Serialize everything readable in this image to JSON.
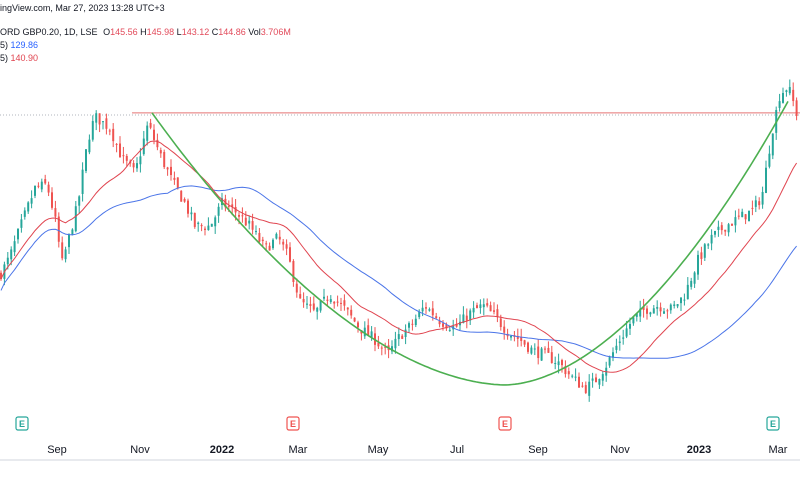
{
  "header": {
    "source_line": "ingView.com, Mar 27, 2023 13:28 UTC+3",
    "symbol_prefix": "ORD GBP0.20, 1D, LSE",
    "o_label": "O",
    "o_value": "145.56",
    "h_label": "H",
    "h_value": "145.98",
    "l_label": "L",
    "l_value": "143.12",
    "c_label": "C",
    "c_value": "144.86",
    "vol_label": "Vol",
    "vol_value": "3.706M",
    "ma_slow_prefix": "5)",
    "ma_slow_value": "129.86",
    "ma_fast_prefix": "5)",
    "ma_fast_value": "140.90"
  },
  "colors": {
    "up": "#26a69a",
    "down": "#ef5350",
    "ma_fast": "#e0444f",
    "ma_slow": "#4a74e8",
    "cup": "#4caf50",
    "resistance": "#e57373",
    "event_green": "#26a69a",
    "event_red": "#ef5350"
  },
  "chart_data": {
    "type": "candlestick",
    "x_ticks": [
      {
        "label": "Sep",
        "bold": false
      },
      {
        "label": "Nov",
        "bold": false
      },
      {
        "label": "2022",
        "bold": true
      },
      {
        "label": "Mar",
        "bold": false
      },
      {
        "label": "May",
        "bold": false
      },
      {
        "label": "Jul",
        "bold": false
      },
      {
        "label": "Sep",
        "bold": false
      },
      {
        "label": "Nov",
        "bold": false
      },
      {
        "label": "2023",
        "bold": true
      },
      {
        "label": "Mar",
        "bold": false
      }
    ],
    "event_markers": [
      {
        "label": "E",
        "color": "green"
      },
      {
        "label": "E",
        "color": "red"
      },
      {
        "label": "E",
        "color": "red"
      },
      {
        "label": "E",
        "color": "green"
      }
    ],
    "price_anchors": [
      [
        0,
        103
      ],
      [
        10,
        108
      ],
      [
        22,
        117
      ],
      [
        35,
        126
      ],
      [
        47,
        127
      ],
      [
        55,
        118
      ],
      [
        62,
        106
      ],
      [
        78,
        122
      ],
      [
        88,
        139
      ],
      [
        95,
        145
      ],
      [
        110,
        142
      ],
      [
        122,
        134
      ],
      [
        135,
        130
      ],
      [
        148,
        143
      ],
      [
        160,
        135
      ],
      [
        172,
        128
      ],
      [
        185,
        122
      ],
      [
        195,
        116
      ],
      [
        210,
        116
      ],
      [
        222,
        122
      ],
      [
        235,
        120
      ],
      [
        250,
        116
      ],
      [
        265,
        110
      ],
      [
        278,
        113
      ],
      [
        288,
        108
      ],
      [
        300,
        96
      ],
      [
        315,
        93
      ],
      [
        330,
        98
      ],
      [
        345,
        94
      ],
      [
        360,
        89
      ],
      [
        375,
        86
      ],
      [
        388,
        82
      ],
      [
        400,
        87
      ],
      [
        412,
        90
      ],
      [
        425,
        95
      ],
      [
        440,
        91
      ],
      [
        455,
        89
      ],
      [
        470,
        93
      ],
      [
        483,
        95
      ],
      [
        495,
        92
      ],
      [
        508,
        88
      ],
      [
        520,
        86
      ],
      [
        533,
        83
      ],
      [
        545,
        82
      ],
      [
        558,
        80
      ],
      [
        572,
        76
      ],
      [
        585,
        73
      ],
      [
        595,
        75
      ],
      [
        608,
        80
      ],
      [
        620,
        86
      ],
      [
        632,
        91
      ],
      [
        645,
        94
      ],
      [
        658,
        95
      ],
      [
        672,
        94
      ],
      [
        685,
        98
      ],
      [
        698,
        107
      ],
      [
        712,
        113
      ],
      [
        725,
        116
      ],
      [
        738,
        118
      ],
      [
        752,
        120
      ],
      [
        762,
        124
      ],
      [
        772,
        141
      ],
      [
        780,
        151
      ],
      [
        788,
        153
      ],
      [
        793,
        149
      ],
      [
        800,
        143
      ]
    ],
    "cup_curve": [
      [
        152,
        146
      ],
      [
        505,
        74
      ],
      [
        790,
        150
      ]
    ],
    "resistance_level": 146,
    "ma_fast_period": 20,
    "ma_slow_period": 50
  }
}
